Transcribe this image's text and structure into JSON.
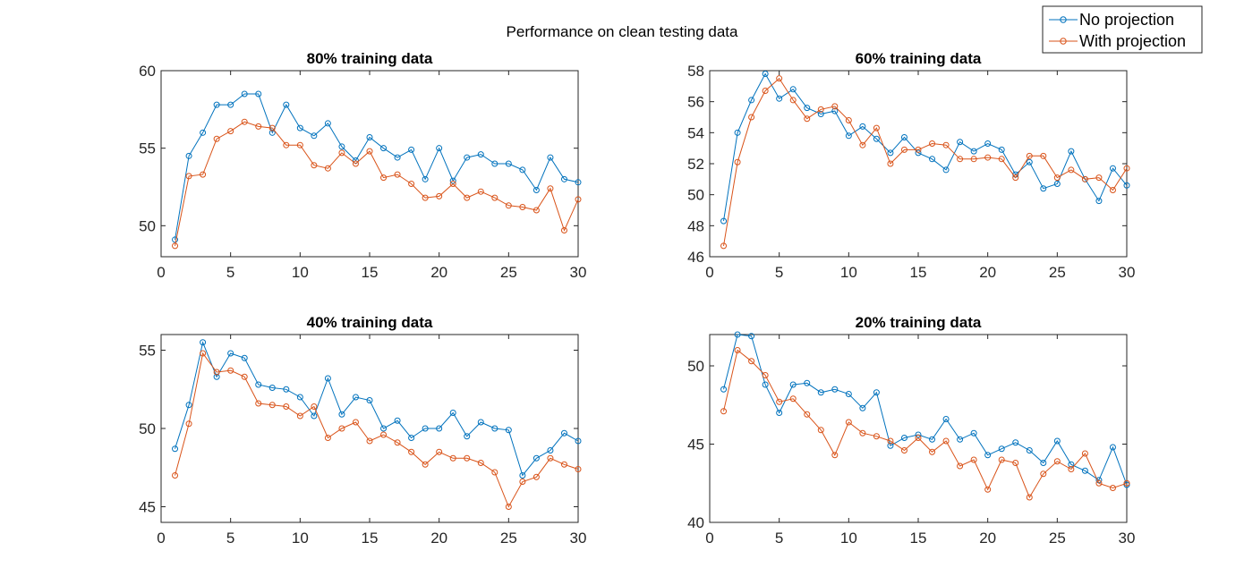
{
  "figure": {
    "suptitle": "Performance on clean testing data"
  },
  "legend": {
    "placement": "top-right",
    "entries": [
      {
        "label": "No projection",
        "color": "#0072BD"
      },
      {
        "label": "With projection",
        "color": "#D95319"
      }
    ]
  },
  "chart_data": [
    {
      "type": "line",
      "title": "80% training data",
      "xlabel": "",
      "ylabel": "",
      "xlim": [
        0,
        30
      ],
      "ylim": [
        48,
        60
      ],
      "xticks": [
        0,
        5,
        10,
        15,
        20,
        25,
        30
      ],
      "yticks": [
        50,
        55,
        60
      ],
      "x": [
        1,
        2,
        3,
        4,
        5,
        6,
        7,
        8,
        9,
        10,
        11,
        12,
        13,
        14,
        15,
        16,
        17,
        18,
        19,
        20,
        21,
        22,
        23,
        24,
        25,
        26,
        27,
        28,
        29,
        30
      ],
      "series": [
        {
          "name": "No projection",
          "color": "#0072BD",
          "values": [
            49.1,
            54.5,
            56.0,
            57.8,
            57.8,
            58.5,
            58.5,
            56.0,
            57.8,
            56.3,
            55.8,
            56.6,
            55.1,
            54.2,
            55.7,
            55.0,
            54.4,
            54.9,
            53.0,
            55.0,
            52.9,
            54.4,
            54.6,
            54.0,
            54.0,
            53.6,
            52.3,
            54.4,
            53.0,
            52.8
          ]
        },
        {
          "name": "With projection",
          "color": "#D95319",
          "values": [
            48.7,
            53.2,
            53.3,
            55.6,
            56.1,
            56.7,
            56.4,
            56.3,
            55.2,
            55.2,
            53.9,
            53.7,
            54.7,
            54.0,
            54.8,
            53.1,
            53.3,
            52.7,
            51.8,
            51.9,
            52.7,
            51.8,
            52.2,
            51.8,
            51.3,
            51.2,
            51.0,
            52.4,
            49.7,
            51.7
          ]
        }
      ]
    },
    {
      "type": "line",
      "title": "60% training data",
      "xlabel": "",
      "ylabel": "",
      "xlim": [
        0,
        30
      ],
      "ylim": [
        46,
        58
      ],
      "xticks": [
        0,
        5,
        10,
        15,
        20,
        25,
        30
      ],
      "yticks": [
        46,
        48,
        50,
        52,
        54,
        56,
        58
      ],
      "x": [
        1,
        2,
        3,
        4,
        5,
        6,
        7,
        8,
        9,
        10,
        11,
        12,
        13,
        14,
        15,
        16,
        17,
        18,
        19,
        20,
        21,
        22,
        23,
        24,
        25,
        26,
        27,
        28,
        29,
        30
      ],
      "series": [
        {
          "name": "No projection",
          "color": "#0072BD",
          "values": [
            48.3,
            54.0,
            56.1,
            57.8,
            56.2,
            56.8,
            55.6,
            55.2,
            55.4,
            53.8,
            54.4,
            53.6,
            52.7,
            53.7,
            52.7,
            52.3,
            51.6,
            53.4,
            52.8,
            53.3,
            52.9,
            51.3,
            52.1,
            50.4,
            50.7,
            52.8,
            51.0,
            49.6,
            51.7,
            50.6
          ]
        },
        {
          "name": "With projection",
          "color": "#D95319",
          "values": [
            46.7,
            52.1,
            55.0,
            56.7,
            57.5,
            56.1,
            54.9,
            55.5,
            55.7,
            54.8,
            53.2,
            54.3,
            52.0,
            52.9,
            52.9,
            53.3,
            53.2,
            52.3,
            52.3,
            52.4,
            52.3,
            51.1,
            52.5,
            52.5,
            51.1,
            51.6,
            51.0,
            51.1,
            50.3,
            51.7
          ]
        }
      ]
    },
    {
      "type": "line",
      "title": "40% training data",
      "xlabel": "",
      "ylabel": "",
      "xlim": [
        0,
        30
      ],
      "ylim": [
        44,
        56
      ],
      "xticks": [
        0,
        5,
        10,
        15,
        20,
        25,
        30
      ],
      "yticks": [
        45,
        50,
        55
      ],
      "x": [
        1,
        2,
        3,
        4,
        5,
        6,
        7,
        8,
        9,
        10,
        11,
        12,
        13,
        14,
        15,
        16,
        17,
        18,
        19,
        20,
        21,
        22,
        23,
        24,
        25,
        26,
        27,
        28,
        29,
        30
      ],
      "series": [
        {
          "name": "No projection",
          "color": "#0072BD",
          "values": [
            48.7,
            51.5,
            55.5,
            53.3,
            54.8,
            54.5,
            52.8,
            52.6,
            52.5,
            52.0,
            50.8,
            53.2,
            50.9,
            52.0,
            51.8,
            50.0,
            50.5,
            49.4,
            50.0,
            50.0,
            51.0,
            49.5,
            50.4,
            50.0,
            49.9,
            47.0,
            48.1,
            48.6,
            49.7,
            49.2
          ]
        },
        {
          "name": "With projection",
          "color": "#D95319",
          "values": [
            47.0,
            50.3,
            54.8,
            53.6,
            53.7,
            53.3,
            51.6,
            51.5,
            51.4,
            50.8,
            51.4,
            49.4,
            50.0,
            50.4,
            49.2,
            49.6,
            49.1,
            48.5,
            47.7,
            48.5,
            48.1,
            48.1,
            47.8,
            47.2,
            45.0,
            46.6,
            46.9,
            48.1,
            47.7,
            47.4
          ]
        }
      ]
    },
    {
      "type": "line",
      "title": "20% training data",
      "xlabel": "",
      "ylabel": "",
      "xlim": [
        0,
        30
      ],
      "ylim": [
        40,
        52
      ],
      "xticks": [
        0,
        5,
        10,
        15,
        20,
        25,
        30
      ],
      "yticks": [
        40,
        45,
        50
      ],
      "x": [
        1,
        2,
        3,
        4,
        5,
        6,
        7,
        8,
        9,
        10,
        11,
        12,
        13,
        14,
        15,
        16,
        17,
        18,
        19,
        20,
        21,
        22,
        23,
        24,
        25,
        26,
        27,
        28,
        29,
        30
      ],
      "series": [
        {
          "name": "No projection",
          "color": "#0072BD",
          "values": [
            48.5,
            52.0,
            51.9,
            48.8,
            47.0,
            48.8,
            48.9,
            48.3,
            48.5,
            48.2,
            47.3,
            48.3,
            44.9,
            45.4,
            45.6,
            45.3,
            46.6,
            45.3,
            45.7,
            44.3,
            44.7,
            45.1,
            44.6,
            43.8,
            45.2,
            43.7,
            43.3,
            42.7,
            44.8,
            42.4
          ]
        },
        {
          "name": "With projection",
          "color": "#D95319",
          "values": [
            47.1,
            51.0,
            50.3,
            49.4,
            47.7,
            47.9,
            46.9,
            45.9,
            44.3,
            46.4,
            45.7,
            45.5,
            45.2,
            44.6,
            45.4,
            44.5,
            45.2,
            43.6,
            44.0,
            42.1,
            44.0,
            43.8,
            41.6,
            43.1,
            43.9,
            43.4,
            44.4,
            42.5,
            42.2,
            42.5
          ]
        }
      ]
    }
  ]
}
